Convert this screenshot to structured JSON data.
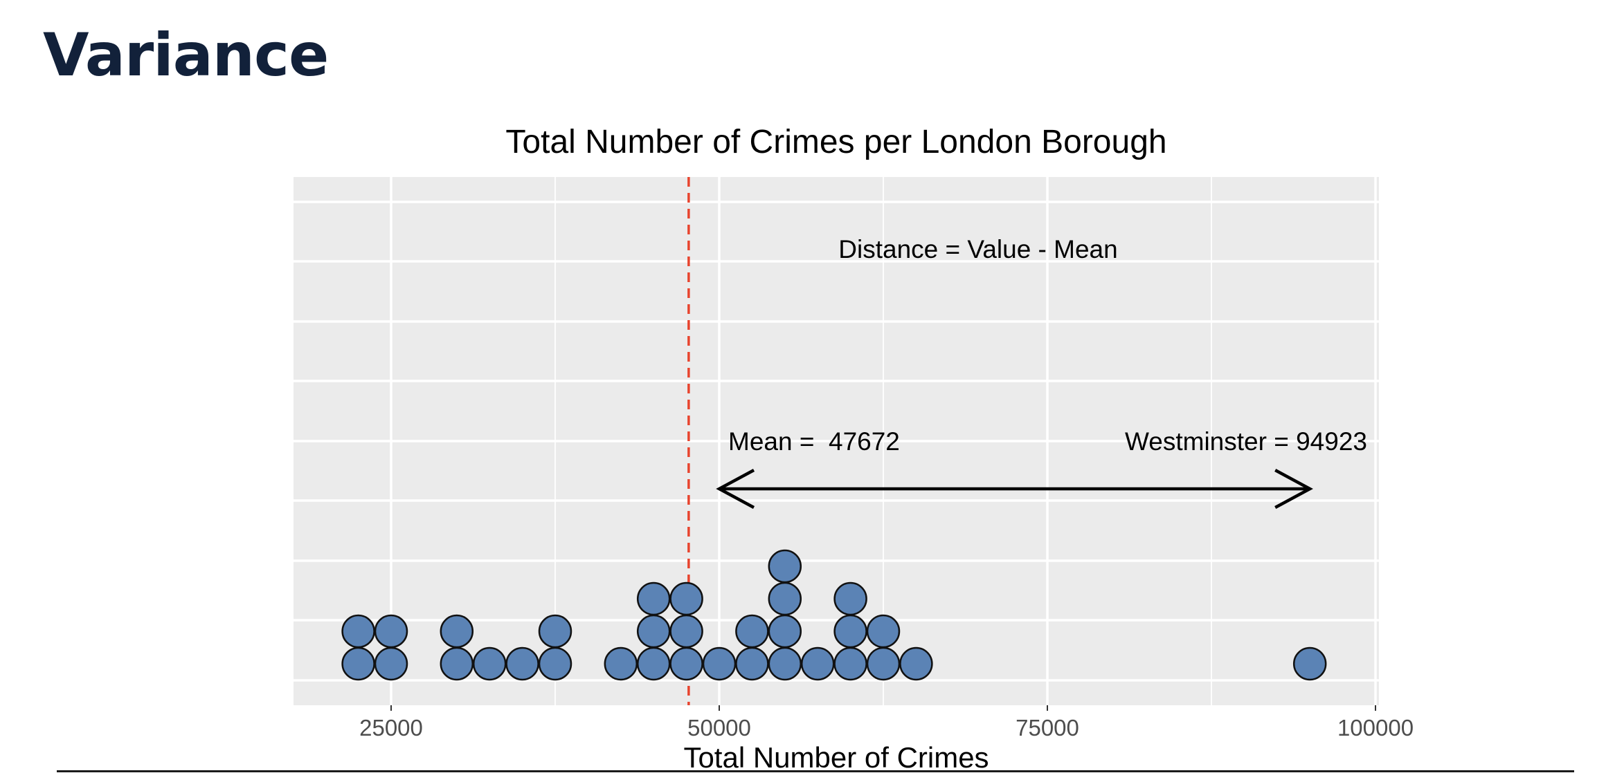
{
  "page": {
    "title": "Variance"
  },
  "chart_data": {
    "type": "dotplot",
    "title": "Total Number of Crimes per London Borough",
    "xlabel": "Total Number of Crimes",
    "ylabel": "",
    "xlim": [
      18000,
      101000
    ],
    "x_ticks": [
      25000,
      50000,
      75000,
      100000
    ],
    "x_tick_labels": [
      "25000",
      "50000",
      "75000",
      "100000"
    ],
    "grid": true,
    "colors": {
      "panel": "#ebebeb",
      "grid": "#ffffff",
      "dot_fill": "#5b83b5",
      "dot_stroke": "#111111",
      "mean_line": "#e8442e",
      "arrow": "#000000",
      "text": "#000000",
      "tick_text": "#4d4d4d"
    },
    "dots": [
      {
        "x": 22500,
        "count": 2
      },
      {
        "x": 25000,
        "count": 2
      },
      {
        "x": 30000,
        "count": 2
      },
      {
        "x": 32500,
        "count": 1
      },
      {
        "x": 35000,
        "count": 1
      },
      {
        "x": 37500,
        "count": 2
      },
      {
        "x": 42500,
        "count": 1
      },
      {
        "x": 45000,
        "count": 3
      },
      {
        "x": 47500,
        "count": 3
      },
      {
        "x": 50000,
        "count": 1
      },
      {
        "x": 52500,
        "count": 2
      },
      {
        "x": 55000,
        "count": 4
      },
      {
        "x": 57500,
        "count": 1
      },
      {
        "x": 60000,
        "count": 3
      },
      {
        "x": 62500,
        "count": 2
      },
      {
        "x": 65000,
        "count": 1
      },
      {
        "x": 95000,
        "count": 1
      }
    ],
    "mean": {
      "value": 47672,
      "label": "Mean =  47672"
    },
    "highlight": {
      "name": "Westminster",
      "value": 94923,
      "label": "Westminster = 94923"
    },
    "arrow": {
      "from": 50000,
      "to": 95000
    },
    "annotation": {
      "text": "Distance = Value - Mean"
    }
  }
}
